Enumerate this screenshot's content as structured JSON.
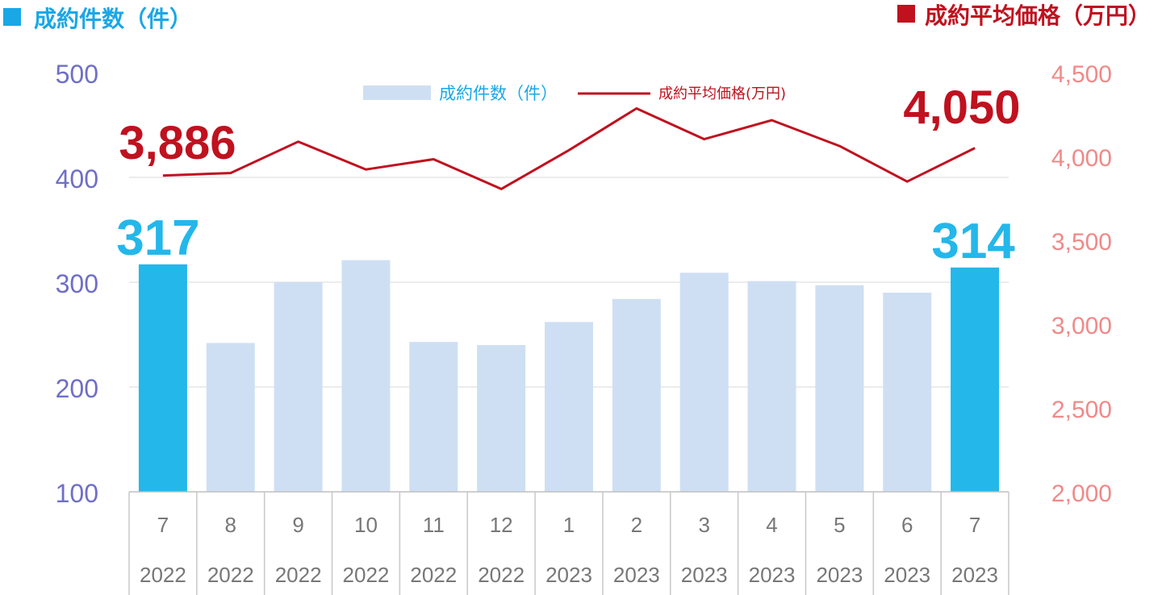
{
  "header": {
    "left_title": "成約件数（件）",
    "right_title": "成約平均価格（万円）"
  },
  "colors": {
    "bar_normal": "#cfdff3",
    "bar_highlight": "#24b7ea",
    "line": "#c0111f",
    "left_axis": "#6f6fc7",
    "right_axis": "#ef8a88",
    "left_title": "#1aa7e6",
    "right_title": "#c0111f",
    "grid": "#d8d8d8",
    "category": "#777777"
  },
  "chart_data": {
    "type": "bar",
    "categories": [
      "7",
      "8",
      "9",
      "10",
      "11",
      "12",
      "1",
      "2",
      "3",
      "4",
      "5",
      "6",
      "7"
    ],
    "years": [
      "2022",
      "2022",
      "2022",
      "2022",
      "2022",
      "2022",
      "2023",
      "2023",
      "2023",
      "2023",
      "2023",
      "2023",
      "2023"
    ],
    "series": [
      {
        "name": "成約件数（件）",
        "type": "bar",
        "axis": "left",
        "values": [
          317,
          242,
          300,
          321,
          243,
          240,
          262,
          284,
          309,
          301,
          297,
          290,
          314
        ]
      },
      {
        "name": "成約平均価格(万円)",
        "type": "line",
        "axis": "right",
        "values": [
          3886,
          3901,
          4088,
          3922,
          3983,
          3806,
          4037,
          4286,
          4103,
          4216,
          4062,
          3850,
          4050
        ]
      }
    ],
    "y_left": {
      "min": 100,
      "max": 500,
      "ticks": [
        "100",
        "200",
        "300",
        "400",
        "500"
      ]
    },
    "y_right": {
      "min": 2000,
      "max": 4500,
      "ticks": [
        "2,000",
        "2,500",
        "3,000",
        "3,500",
        "4,000",
        "4,500"
      ]
    },
    "highlight_indices": [
      0,
      12
    ],
    "annotations": {
      "first_bar": "317",
      "last_bar": "314",
      "first_price": "3,886",
      "last_price": "4,050"
    },
    "legend": {
      "bar_label": "成約件数（件）",
      "line_label": "成約平均価格(万円)",
      "placement": "top-center"
    },
    "grid": true
  }
}
